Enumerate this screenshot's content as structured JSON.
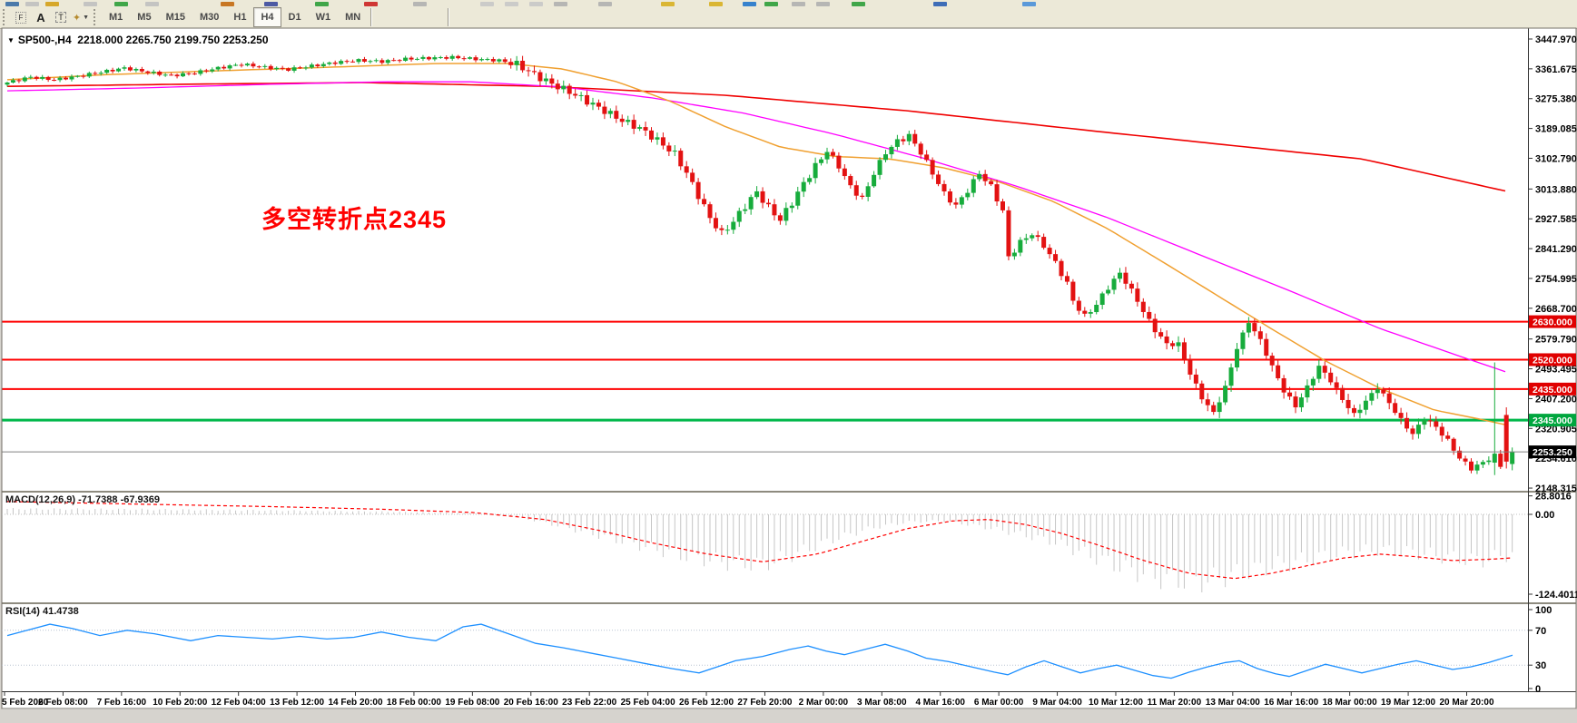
{
  "window": {
    "title_symbol": "SP500-,H4",
    "title_values": "2218.000 2265.750 2199.750 2253.250"
  },
  "toolbar": {
    "tools": [
      {
        "id": "fibonacci",
        "glyph": "F"
      },
      {
        "id": "text",
        "glyph": "A"
      },
      {
        "id": "text-label",
        "glyph": "T"
      },
      {
        "id": "arrows",
        "glyph": "✦",
        "dropdown": "▼"
      }
    ],
    "timeframes": [
      "M1",
      "M5",
      "M15",
      "M30",
      "H1",
      "H4",
      "D1",
      "W1",
      "MN"
    ],
    "active_timeframe": "H4",
    "top_row_slivers": [
      [
        6,
        "#3a6ea5"
      ],
      [
        28,
        "#c0c0c0"
      ],
      [
        50,
        "#d4a017"
      ],
      [
        92,
        "#c0c0c0"
      ],
      [
        126,
        "#2e9e3a"
      ],
      [
        160,
        "#c0c0c0"
      ],
      [
        243,
        "#c46a10"
      ],
      [
        291,
        "#3c4a9e"
      ],
      [
        347,
        "#2e9e3a"
      ],
      [
        401,
        "#cc2222"
      ],
      [
        455,
        "#b0b0b0"
      ],
      [
        529,
        "#c8c8c8"
      ],
      [
        556,
        "#c8c8c8"
      ],
      [
        583,
        "#c8c8c8"
      ],
      [
        610,
        "#b0b0b0"
      ],
      [
        659,
        "#b0b0b0"
      ],
      [
        728,
        "#d8b021"
      ],
      [
        781,
        "#d8b021"
      ],
      [
        818,
        "#2277cc"
      ],
      [
        842,
        "#2e9e3a"
      ],
      [
        872,
        "#b0b0b0"
      ],
      [
        899,
        "#b0b0b0"
      ],
      [
        938,
        "#2e9e3a"
      ],
      [
        1028,
        "#2b5fb4"
      ],
      [
        1126,
        "#4a90d9"
      ]
    ]
  },
  "annotation": {
    "text": "多空转折点2345",
    "color": "#FF0000"
  },
  "indicators": {
    "macd": {
      "name": "MACD(12,26,9)",
      "values": "-71.7388 -67.9369",
      "scale": [
        "28.8016",
        "0.00",
        "-124.4011"
      ]
    },
    "rsi": {
      "name": "RSI(14)",
      "value": "41.4738",
      "scale": [
        "100",
        "70",
        "30",
        "0"
      ]
    }
  },
  "price_axis": {
    "ticks": [
      "3447.970",
      "3361.675",
      "3275.380",
      "3189.085",
      "3102.790",
      "3013.880",
      "2927.585",
      "2841.290",
      "2754.995",
      "2668.700",
      "2579.790",
      "2493.495",
      "2407.200",
      "2320.905",
      "2234.610",
      "2148.315"
    ]
  },
  "time_axis": {
    "labels": [
      "5 Feb 2020",
      "6 Feb 08:00",
      "7 Feb 16:00",
      "10 Feb 20:00",
      "12 Feb 04:00",
      "13 Feb 12:00",
      "14 Feb 20:00",
      "18 Feb 00:00",
      "19 Feb 08:00",
      "20 Feb 16:00",
      "23 Feb 22:00",
      "25 Feb 04:00",
      "26 Feb 12:00",
      "27 Feb 20:00",
      "2 Mar 00:00",
      "3 Mar 08:00",
      "4 Mar 16:00",
      "6 Mar 00:00",
      "9 Mar 04:00",
      "10 Mar 12:00",
      "11 Mar 20:00",
      "13 Mar 04:00",
      "16 Mar 16:00",
      "18 Mar 00:00",
      "19 Mar 12:00",
      "20 Mar 20:00"
    ]
  },
  "hlines": [
    {
      "price": 2630.0,
      "label": "2630.000",
      "line": "#FF0000",
      "bg": "#E00000",
      "w": 2
    },
    {
      "price": 2520.0,
      "label": "2520.000",
      "line": "#FF0000",
      "bg": "#E00000",
      "w": 2
    },
    {
      "price": 2435.0,
      "label": "2435.000",
      "line": "#FF0000",
      "bg": "#E00000",
      "w": 2
    },
    {
      "price": 2345.0,
      "label": "2345.000",
      "line": "#00B84A",
      "bg": "#00A63E",
      "w": 3
    },
    {
      "price": 2253.25,
      "label": "2253.250",
      "line": "#808080",
      "bg": "#000000",
      "w": 1,
      "bid": true
    }
  ],
  "colors": {
    "up": "#17AC3C",
    "down": "#E31212",
    "ma_fast": "#F0A030",
    "ma_mid": "#FF00FF",
    "ma_slow": "#F00000",
    "macd_hist": "#C6C6C6",
    "macd_signal": "#FF0000",
    "rsi": "#1E90FF",
    "rsi_levels": "#B9C4D1",
    "pane_bg": "#FFFFFF",
    "frame": "#76726a",
    "axis_text": "#000000"
  },
  "chart_data": {
    "type": "candlestick",
    "symbol": "SP500-",
    "timeframe": "H4",
    "current_bar": {
      "open": 2218.0,
      "high": 2265.75,
      "low": 2199.75,
      "close": 2253.25
    },
    "bar_count": 258,
    "close_keyframes": [
      [
        0,
        3322
      ],
      [
        4,
        3338
      ],
      [
        8,
        3330
      ],
      [
        12,
        3340
      ],
      [
        16,
        3352
      ],
      [
        20,
        3364
      ],
      [
        24,
        3352
      ],
      [
        28,
        3342
      ],
      [
        32,
        3350
      ],
      [
        36,
        3364
      ],
      [
        40,
        3375
      ],
      [
        44,
        3366
      ],
      [
        48,
        3360
      ],
      [
        52,
        3370
      ],
      [
        56,
        3380
      ],
      [
        60,
        3386
      ],
      [
        64,
        3383
      ],
      [
        68,
        3390
      ],
      [
        72,
        3393
      ],
      [
        76,
        3395
      ],
      [
        80,
        3390
      ],
      [
        84,
        3386
      ],
      [
        87,
        3375
      ],
      [
        90,
        3345
      ],
      [
        93,
        3318
      ],
      [
        96,
        3295
      ],
      [
        99,
        3268
      ],
      [
        102,
        3240
      ],
      [
        105,
        3212
      ],
      [
        108,
        3190
      ],
      [
        111,
        3155
      ],
      [
        114,
        3115
      ],
      [
        116,
        3060
      ],
      [
        118,
        2995
      ],
      [
        120,
        2930
      ],
      [
        122,
        2885
      ],
      [
        124,
        2920
      ],
      [
        126,
        2965
      ],
      [
        128,
        3005
      ],
      [
        130,
        2960
      ],
      [
        132,
        2925
      ],
      [
        134,
        2975
      ],
      [
        136,
        3030
      ],
      [
        138,
        3080
      ],
      [
        140,
        3125
      ],
      [
        142,
        3080
      ],
      [
        144,
        3020
      ],
      [
        146,
        2985
      ],
      [
        148,
        3060
      ],
      [
        150,
        3120
      ],
      [
        152,
        3152
      ],
      [
        154,
        3168
      ],
      [
        156,
        3120
      ],
      [
        158,
        3060
      ],
      [
        160,
        3000
      ],
      [
        162,
        2965
      ],
      [
        164,
        3010
      ],
      [
        166,
        3060
      ],
      [
        168,
        3020
      ],
      [
        170,
        2950
      ],
      [
        171,
        2815
      ],
      [
        173,
        2860
      ],
      [
        175,
        2885
      ],
      [
        177,
        2850
      ],
      [
        179,
        2800
      ],
      [
        181,
        2740
      ],
      [
        182,
        2690
      ],
      [
        184,
        2645
      ],
      [
        186,
        2680
      ],
      [
        188,
        2730
      ],
      [
        190,
        2770
      ],
      [
        192,
        2720
      ],
      [
        194,
        2660
      ],
      [
        196,
        2605
      ],
      [
        198,
        2565
      ],
      [
        200,
        2565
      ],
      [
        202,
        2480
      ],
      [
        204,
        2410
      ],
      [
        206,
        2365
      ],
      [
        208,
        2440
      ],
      [
        210,
        2555
      ],
      [
        212,
        2630
      ],
      [
        214,
        2575
      ],
      [
        216,
        2500
      ],
      [
        218,
        2430
      ],
      [
        220,
        2385
      ],
      [
        222,
        2440
      ],
      [
        224,
        2500
      ],
      [
        226,
        2460
      ],
      [
        228,
        2405
      ],
      [
        230,
        2360
      ],
      [
        232,
        2400
      ],
      [
        234,
        2440
      ],
      [
        236,
        2395
      ],
      [
        238,
        2345
      ],
      [
        240,
        2305
      ],
      [
        242,
        2350
      ],
      [
        244,
        2325
      ],
      [
        246,
        2285
      ],
      [
        248,
        2235
      ],
      [
        250,
        2205
      ],
      [
        252,
        2222
      ],
      [
        254,
        2245
      ],
      [
        255,
        2212
      ],
      [
        256,
        2258
      ],
      [
        257,
        2253.25
      ]
    ],
    "special_bars": {
      "254": [
        2222,
        2512,
        2186,
        2248
      ],
      "256": [
        2360,
        2382,
        2205,
        2225
      ],
      "257": [
        2218,
        2265.75,
        2199.75,
        2253.25
      ]
    },
    "vol_zones": [
      [
        86,
        6
      ],
      [
        140,
        16
      ],
      [
        190,
        13
      ],
      [
        246,
        18
      ],
      [
        260,
        12
      ]
    ],
    "osc_zones": [
      [
        86,
        4
      ],
      [
        140,
        10
      ],
      [
        190,
        8
      ],
      [
        260,
        6
      ]
    ],
    "ma_fast_points": [
      [
        8,
        3330
      ],
      [
        120,
        3345
      ],
      [
        240,
        3356
      ],
      [
        360,
        3366
      ],
      [
        480,
        3377
      ],
      [
        560,
        3377
      ],
      [
        620,
        3361
      ],
      [
        680,
        3324
      ],
      [
        740,
        3266
      ],
      [
        800,
        3193
      ],
      [
        860,
        3135
      ],
      [
        920,
        3108
      ],
      [
        980,
        3101
      ],
      [
        1040,
        3075
      ],
      [
        1100,
        3035
      ],
      [
        1160,
        2978
      ],
      [
        1220,
        2899
      ],
      [
        1280,
        2804
      ],
      [
        1340,
        2707
      ],
      [
        1400,
        2610
      ],
      [
        1460,
        2516
      ],
      [
        1520,
        2437
      ],
      [
        1580,
        2374
      ],
      [
        1630,
        2348
      ],
      [
        1666,
        2327
      ]
    ],
    "ma_mid_points": [
      [
        8,
        3298
      ],
      [
        150,
        3306
      ],
      [
        300,
        3317
      ],
      [
        420,
        3324
      ],
      [
        520,
        3324
      ],
      [
        620,
        3309
      ],
      [
        720,
        3277
      ],
      [
        820,
        3233
      ],
      [
        920,
        3172
      ],
      [
        1020,
        3101
      ],
      [
        1120,
        3022
      ],
      [
        1220,
        2931
      ],
      [
        1320,
        2825
      ],
      [
        1420,
        2720
      ],
      [
        1520,
        2610
      ],
      [
        1600,
        2537
      ],
      [
        1665,
        2479
      ]
    ],
    "ma_slow_points": [
      [
        8,
        3311
      ],
      [
        200,
        3317
      ],
      [
        400,
        3322
      ],
      [
        600,
        3311
      ],
      [
        800,
        3285
      ],
      [
        1000,
        3240
      ],
      [
        1200,
        3183
      ],
      [
        1400,
        3128
      ],
      [
        1500,
        3101
      ],
      [
        1665,
        3004
      ]
    ],
    "macd_hist_keyframes": [
      [
        8,
        10
      ],
      [
        150,
        9
      ],
      [
        300,
        7
      ],
      [
        420,
        5
      ],
      [
        520,
        2
      ],
      [
        560,
        -2
      ],
      [
        600,
        -15
      ],
      [
        650,
        -35
      ],
      [
        700,
        -55
      ],
      [
        750,
        -75
      ],
      [
        800,
        -88
      ],
      [
        840,
        -92
      ],
      [
        880,
        -70
      ],
      [
        920,
        -45
      ],
      [
        960,
        -25
      ],
      [
        1000,
        -14
      ],
      [
        1040,
        -12
      ],
      [
        1080,
        -22
      ],
      [
        1120,
        -35
      ],
      [
        1160,
        -50
      ],
      [
        1200,
        -75
      ],
      [
        1240,
        -100
      ],
      [
        1280,
        -118
      ],
      [
        1320,
        -124
      ],
      [
        1360,
        -110
      ],
      [
        1400,
        -95
      ],
      [
        1440,
        -82
      ],
      [
        1480,
        -70
      ],
      [
        1520,
        -65
      ],
      [
        1560,
        -70
      ],
      [
        1600,
        -80
      ],
      [
        1630,
        -85
      ],
      [
        1666,
        -72
      ]
    ],
    "macd_signal_keyframes": [
      [
        8,
        20
      ],
      [
        150,
        16
      ],
      [
        300,
        12
      ],
      [
        420,
        8
      ],
      [
        520,
        3
      ],
      [
        600,
        -8
      ],
      [
        660,
        -25
      ],
      [
        720,
        -45
      ],
      [
        780,
        -62
      ],
      [
        840,
        -74
      ],
      [
        900,
        -62
      ],
      [
        950,
        -42
      ],
      [
        1000,
        -22
      ],
      [
        1050,
        -10
      ],
      [
        1090,
        -8
      ],
      [
        1130,
        -16
      ],
      [
        1170,
        -30
      ],
      [
        1210,
        -48
      ],
      [
        1260,
        -72
      ],
      [
        1310,
        -92
      ],
      [
        1360,
        -100
      ],
      [
        1400,
        -92
      ],
      [
        1440,
        -80
      ],
      [
        1480,
        -68
      ],
      [
        1520,
        -62
      ],
      [
        1560,
        -66
      ],
      [
        1600,
        -72
      ],
      [
        1640,
        -70
      ],
      [
        1666,
        -67.9
      ]
    ],
    "rsi_points": [
      [
        8,
        64
      ],
      [
        30,
        70
      ],
      [
        55,
        77
      ],
      [
        80,
        72
      ],
      [
        110,
        64
      ],
      [
        140,
        70
      ],
      [
        170,
        66
      ],
      [
        210,
        58
      ],
      [
        240,
        64
      ],
      [
        270,
        62
      ],
      [
        300,
        60
      ],
      [
        330,
        63
      ],
      [
        360,
        60
      ],
      [
        390,
        62
      ],
      [
        420,
        68
      ],
      [
        450,
        62
      ],
      [
        480,
        58
      ],
      [
        510,
        74
      ],
      [
        530,
        77
      ],
      [
        560,
        66
      ],
      [
        590,
        55
      ],
      [
        620,
        50
      ],
      [
        650,
        44
      ],
      [
        680,
        38
      ],
      [
        710,
        32
      ],
      [
        740,
        26
      ],
      [
        770,
        21
      ],
      [
        790,
        28
      ],
      [
        810,
        35
      ],
      [
        840,
        40
      ],
      [
        870,
        48
      ],
      [
        890,
        52
      ],
      [
        910,
        46
      ],
      [
        930,
        42
      ],
      [
        960,
        50
      ],
      [
        975,
        54
      ],
      [
        1000,
        46
      ],
      [
        1020,
        38
      ],
      [
        1045,
        34
      ],
      [
        1070,
        28
      ],
      [
        1095,
        22
      ],
      [
        1110,
        19
      ],
      [
        1130,
        28
      ],
      [
        1150,
        35
      ],
      [
        1170,
        28
      ],
      [
        1190,
        21
      ],
      [
        1210,
        26
      ],
      [
        1230,
        30
      ],
      [
        1250,
        24
      ],
      [
        1270,
        18
      ],
      [
        1290,
        15
      ],
      [
        1310,
        22
      ],
      [
        1330,
        28
      ],
      [
        1350,
        33
      ],
      [
        1365,
        35
      ],
      [
        1385,
        26
      ],
      [
        1405,
        20
      ],
      [
        1420,
        17
      ],
      [
        1440,
        24
      ],
      [
        1460,
        31
      ],
      [
        1480,
        26
      ],
      [
        1500,
        21
      ],
      [
        1520,
        26
      ],
      [
        1540,
        31
      ],
      [
        1560,
        35
      ],
      [
        1580,
        30
      ],
      [
        1600,
        25
      ],
      [
        1620,
        28
      ],
      [
        1640,
        33
      ],
      [
        1666,
        41.47
      ]
    ]
  }
}
